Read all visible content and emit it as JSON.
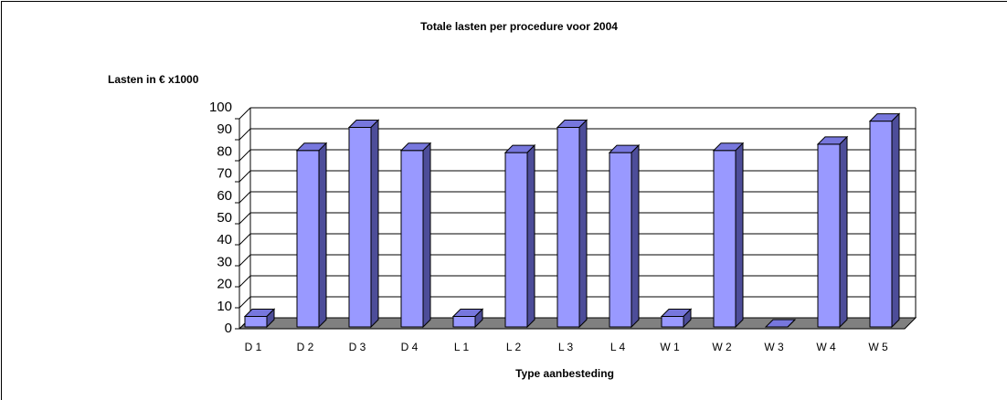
{
  "chart_data": {
    "type": "bar3d",
    "title": "Totale lasten per procedure voor 2004",
    "y_label": "Lasten in € x1000",
    "x_label": "Type aanbesteding",
    "categories": [
      "D 1",
      "D 2",
      "D 3",
      "D 4",
      "L 1",
      "L 2",
      "L 3",
      "L 4",
      "W 1",
      "W 2",
      "W 3",
      "W 4",
      "W 5"
    ],
    "values": [
      5,
      84,
      95,
      84,
      5,
      83,
      95,
      83,
      5,
      84,
      0,
      87,
      98
    ],
    "color": "#9999ff",
    "ylim": [
      0,
      100
    ],
    "yticks": [
      0,
      10,
      20,
      30,
      40,
      50,
      60,
      70,
      80,
      90,
      100
    ],
    "grid": true
  }
}
